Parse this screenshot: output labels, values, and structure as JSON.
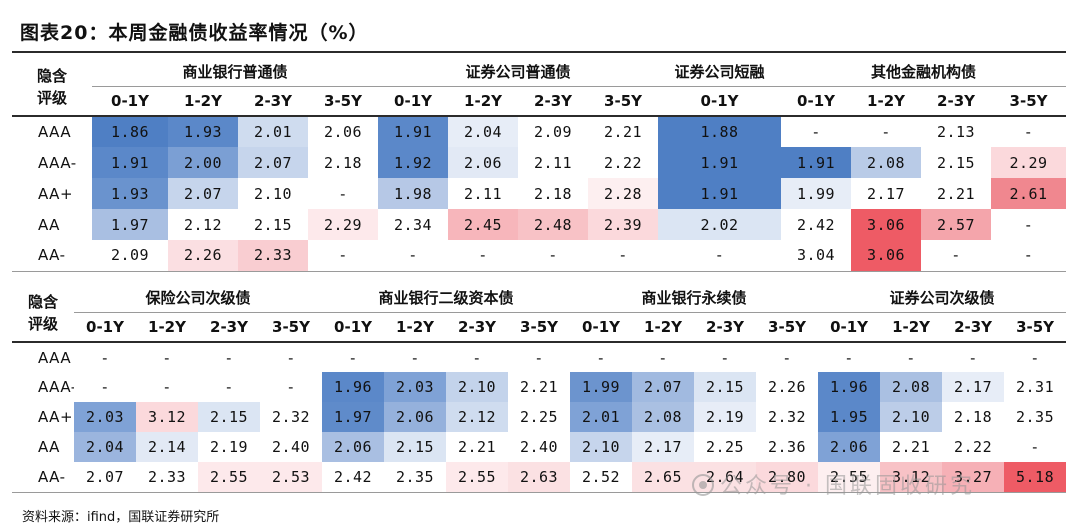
{
  "title": "图表20：本周金融债收益率情况（%）",
  "rating_header": [
    "隐含",
    "评级"
  ],
  "blocks": [
    {
      "groups": [
        {
          "name": "商业银行普通债",
          "tenors": [
            "0-1Y",
            "1-2Y",
            "2-3Y",
            "3-5Y"
          ]
        },
        {
          "name": "证券公司普通债",
          "tenors": [
            "0-1Y",
            "1-2Y",
            "2-3Y",
            "3-5Y"
          ]
        },
        {
          "name": "证券公司短融",
          "tenors": [
            "0-1Y"
          ]
        },
        {
          "name": "其他金融机构债",
          "tenors": [
            "0-1Y",
            "1-2Y",
            "2-3Y",
            "3-5Y"
          ]
        }
      ],
      "rows": [
        {
          "rating": "AAA",
          "values": [
            "1.86",
            "1.93",
            "2.01",
            "2.06",
            "1.91",
            "2.04",
            "2.09",
            "2.21",
            "1.88",
            "-",
            "-",
            "2.13",
            "-"
          ]
        },
        {
          "rating": "AAA-",
          "values": [
            "1.91",
            "2.00",
            "2.07",
            "2.18",
            "1.92",
            "2.06",
            "2.11",
            "2.22",
            "1.91",
            "1.91",
            "2.08",
            "2.15",
            "2.29"
          ]
        },
        {
          "rating": "AA+",
          "values": [
            "1.93",
            "2.07",
            "2.10",
            "-",
            "1.98",
            "2.11",
            "2.18",
            "2.28",
            "1.91",
            "1.99",
            "2.17",
            "2.21",
            "2.61"
          ]
        },
        {
          "rating": "AA",
          "values": [
            "1.97",
            "2.12",
            "2.15",
            "2.29",
            "2.34",
            "2.45",
            "2.48",
            "2.39",
            "2.02",
            "2.42",
            "3.06",
            "2.57",
            "-"
          ]
        },
        {
          "rating": "AA-",
          "values": [
            "2.09",
            "2.26",
            "2.33",
            "-",
            "-",
            "-",
            "-",
            "-",
            "-",
            "3.04",
            "3.06",
            "-",
            "-"
          ]
        }
      ],
      "colors": [
        [
          "#4f7fc4",
          "#5b88c9",
          "#cfdcef",
          "#ffffff",
          "#5b88c9",
          "#e7edf7",
          "#ffffff",
          "#ffffff",
          "#4f7fc4",
          "#ffffff",
          "#ffffff",
          "#ffffff",
          "#ffffff"
        ],
        [
          "#5b88c9",
          "#7b9fd4",
          "#c6d5ec",
          "#ffffff",
          "#5b88c9",
          "#e2e9f5",
          "#ffffff",
          "#ffffff",
          "#4f7fc4",
          "#4f7fc4",
          "#b9cbe7",
          "#ffffff",
          "#fbd9dc"
        ],
        [
          "#6a93ce",
          "#c6d5ec",
          "#ffffff",
          "#ffffff",
          "#b6c8e6",
          "#ffffff",
          "#ffffff",
          "#fdeff0",
          "#4f7fc4",
          "#e7edf7",
          "#ffffff",
          "#ffffff",
          "#f0878f"
        ],
        [
          "#a9bfe2",
          "#ffffff",
          "#ffffff",
          "#fde9eb",
          "#ffffff",
          "#f7b6bb",
          "#f8c2c6",
          "#fbd9dc",
          "#dbe5f3",
          "#ffffff",
          "#ee5b65",
          "#f4a5ab",
          "#ffffff"
        ],
        [
          "#ffffff",
          "#fbdfe2",
          "#f9cdd1",
          "#ffffff",
          "#ffffff",
          "#ffffff",
          "#ffffff",
          "#ffffff",
          "#ffffff",
          "#ffffff",
          "#ee5b65",
          "#ffffff",
          "#ffffff"
        ]
      ]
    },
    {
      "groups": [
        {
          "name": "保险公司次级债",
          "tenors": [
            "0-1Y",
            "1-2Y",
            "2-3Y",
            "3-5Y"
          ]
        },
        {
          "name": "商业银行二级资本债",
          "tenors": [
            "0-1Y",
            "1-2Y",
            "2-3Y",
            "3-5Y"
          ]
        },
        {
          "name": "商业银行永续债",
          "tenors": [
            "0-1Y",
            "1-2Y",
            "2-3Y",
            "3-5Y"
          ]
        },
        {
          "name": "证券公司次级债",
          "tenors": [
            "0-1Y",
            "1-2Y",
            "2-3Y",
            "3-5Y"
          ]
        }
      ],
      "rows": [
        {
          "rating": "AAA",
          "values": [
            "-",
            "-",
            "-",
            "-",
            "-",
            "-",
            "-",
            "-",
            "-",
            "-",
            "-",
            "-",
            "-",
            "-",
            "-",
            "-"
          ]
        },
        {
          "rating": "AAA-",
          "values": [
            "-",
            "-",
            "-",
            "-",
            "1.96",
            "2.03",
            "2.10",
            "2.21",
            "1.99",
            "2.07",
            "2.15",
            "2.26",
            "1.96",
            "2.08",
            "2.17",
            "2.31"
          ]
        },
        {
          "rating": "AA+",
          "values": [
            "2.03",
            "3.12",
            "2.15",
            "2.32",
            "1.97",
            "2.06",
            "2.12",
            "2.25",
            "2.01",
            "2.08",
            "2.19",
            "2.32",
            "1.95",
            "2.10",
            "2.18",
            "2.35"
          ]
        },
        {
          "rating": "AA",
          "values": [
            "2.04",
            "2.14",
            "2.19",
            "2.40",
            "2.06",
            "2.15",
            "2.21",
            "2.40",
            "2.10",
            "2.17",
            "2.25",
            "2.36",
            "2.06",
            "2.21",
            "2.22",
            "-"
          ]
        },
        {
          "rating": "AA-",
          "values": [
            "2.07",
            "2.33",
            "2.55",
            "2.53",
            "2.42",
            "2.35",
            "2.55",
            "2.63",
            "2.52",
            "2.65",
            "2.64",
            "2.80",
            "2.55",
            "3.12",
            "3.27",
            "5.18"
          ]
        }
      ],
      "colors": [
        [
          "#ffffff",
          "#ffffff",
          "#ffffff",
          "#ffffff",
          "#ffffff",
          "#ffffff",
          "#ffffff",
          "#ffffff",
          "#ffffff",
          "#ffffff",
          "#ffffff",
          "#ffffff",
          "#ffffff",
          "#ffffff",
          "#ffffff",
          "#ffffff"
        ],
        [
          "#ffffff",
          "#ffffff",
          "#ffffff",
          "#ffffff",
          "#5b88c9",
          "#7fa2d6",
          "#c3d3eb",
          "#ffffff",
          "#6c94ce",
          "#a1bae0",
          "#dbe5f3",
          "#ffffff",
          "#5b88c9",
          "#aac0e2",
          "#e7edf7",
          "#ffffff"
        ],
        [
          "#7fa2d6",
          "#fbd9dc",
          "#dbe5f3",
          "#ffffff",
          "#5f8bca",
          "#95b1dc",
          "#cfdcef",
          "#ffffff",
          "#7fa2d6",
          "#aac0e2",
          "#e7edf7",
          "#ffffff",
          "#5b88c9",
          "#bccde8",
          "#ffffff",
          "#ffffff"
        ],
        [
          "#9bb5de",
          "#e2e9f5",
          "#ffffff",
          "#ffffff",
          "#a9bfe2",
          "#dbe5f3",
          "#ffffff",
          "#ffffff",
          "#c6d5ec",
          "#e7edf7",
          "#ffffff",
          "#ffffff",
          "#7fa2d6",
          "#ffffff",
          "#ffffff",
          "#ffffff"
        ],
        [
          "#ffffff",
          "#ffffff",
          "#fde9eb",
          "#fde9eb",
          "#ffffff",
          "#ffffff",
          "#fde9eb",
          "#fbe1e3",
          "#ffffff",
          "#fbe1e3",
          "#fbe1e3",
          "#fbd9dc",
          "#fdeff0",
          "#f8c2c6",
          "#f6b0b6",
          "#ee5b65"
        ]
      ]
    }
  ],
  "source": "资料来源：ifind，国联证券研究所",
  "watermark": "公众号 · 国联固收研究"
}
